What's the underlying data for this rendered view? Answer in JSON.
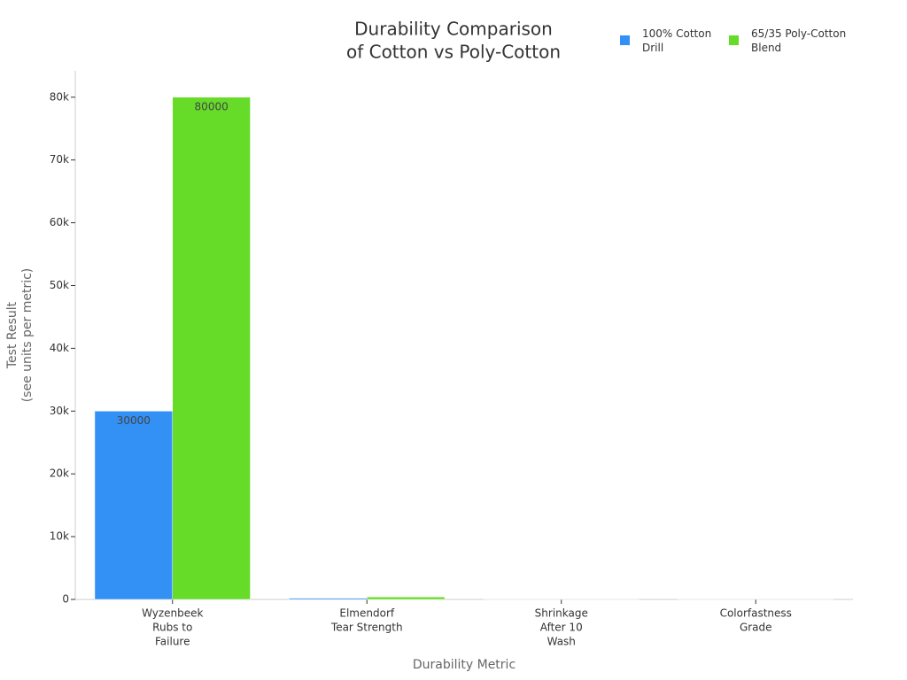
{
  "chart_data": {
    "type": "bar",
    "title": [
      "Durability Comparison",
      "of Cotton vs Poly-Cotton"
    ],
    "x_label": "Durability Metric",
    "y_label": [
      "Test Result",
      "(see units per metric)"
    ],
    "categories": [
      [
        "Wyzenbeek",
        "Rubs to",
        "Failure"
      ],
      [
        "Elmendorf",
        "Tear Strength"
      ],
      [
        "Shrinkage",
        "After 10",
        "Wash"
      ],
      [
        "Colorfastness",
        "Grade"
      ]
    ],
    "series": [
      {
        "name": "100% Cotton Drill",
        "color": "#3391f5",
        "values": [
          30000,
          200,
          3,
          4
        ]
      },
      {
        "name": "65/35 Poly-Cotton Blend",
        "color": "#66dc29",
        "values": [
          80000,
          400,
          1.5,
          4.5
        ]
      }
    ],
    "ylim": [
      0,
      84200
    ],
    "yticks": [
      0,
      {
        "value": 10000,
        "label": "10k"
      },
      {
        "value": 20000,
        "label": "20k"
      },
      {
        "value": 30000,
        "label": "30k"
      },
      {
        "value": 40000,
        "label": "40k"
      },
      {
        "value": 50000,
        "label": "50k"
      },
      {
        "value": 60000,
        "label": "60k"
      },
      {
        "value": 70000,
        "label": "70k"
      },
      {
        "value": 80000,
        "label": "80k"
      }
    ],
    "legend": "top-right"
  }
}
